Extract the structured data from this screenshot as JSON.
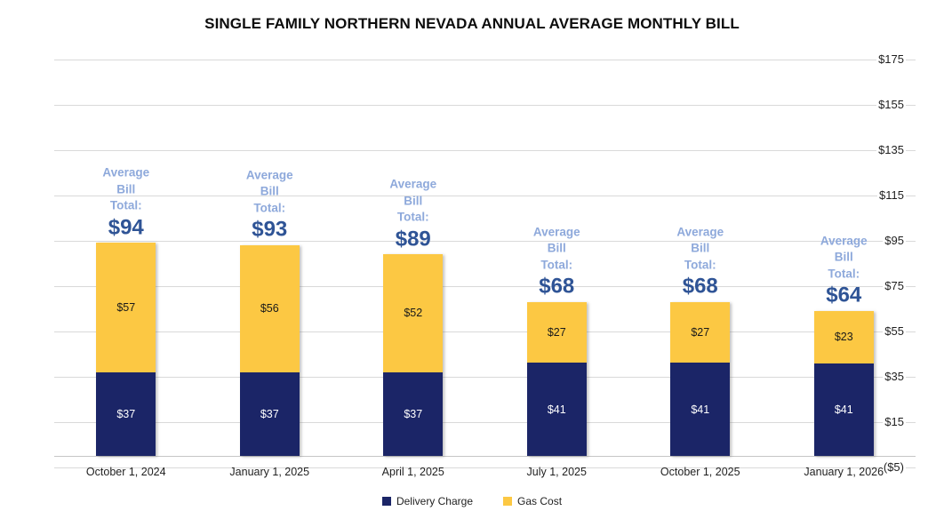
{
  "title": "SINGLE FAMILY NORTHERN NEVADA ANNUAL AVERAGE MONTHLY BILL",
  "colors": {
    "delivery": "#1B2567",
    "gas": "#FCC843",
    "annotation_light": "#8EA9DB",
    "annotation_dark": "#2F5496",
    "gridline": "#D9D9D9",
    "delivery_value_text": "#FFFFFF",
    "gas_value_text": "#1A1A1A",
    "background": "#FFFFFF"
  },
  "annotation": {
    "lines": [
      "Average",
      "Bill",
      "Total:"
    ]
  },
  "y_axis": {
    "max": 175,
    "min": -5,
    "ticks": [
      {
        "value": 175,
        "label": "$175"
      },
      {
        "value": 155,
        "label": "$155"
      },
      {
        "value": 135,
        "label": "$135"
      },
      {
        "value": 115,
        "label": "$115"
      },
      {
        "value": 95,
        "label": "$95"
      },
      {
        "value": 75,
        "label": "$75"
      },
      {
        "value": 55,
        "label": "$55"
      },
      {
        "value": 35,
        "label": "$35"
      },
      {
        "value": 15,
        "label": "$15"
      },
      {
        "value": -5,
        "label": "($5)"
      }
    ]
  },
  "legend": {
    "items": [
      {
        "name": "Delivery Charge",
        "color_key": "delivery"
      },
      {
        "name": "Gas Cost",
        "color_key": "gas"
      }
    ]
  },
  "chart_data": {
    "type": "bar",
    "stacked": true,
    "title": "SINGLE FAMILY NORTHERN NEVADA ANNUAL AVERAGE MONTHLY BILL",
    "categories": [
      "October 1, 2024",
      "January 1, 2025",
      "April 1, 2025",
      "July 1, 2025",
      "October 1, 2025",
      "January 1, 2026"
    ],
    "series": [
      {
        "name": "Delivery Charge",
        "values": [
          37,
          37,
          37,
          41,
          41,
          41
        ],
        "labels": [
          "$37",
          "$37",
          "$37",
          "$41",
          "$41",
          "$41"
        ]
      },
      {
        "name": "Gas Cost",
        "values": [
          57,
          56,
          52,
          27,
          27,
          23
        ],
        "labels": [
          "$57",
          "$56",
          "$52",
          "$27",
          "$27",
          "$23"
        ]
      }
    ],
    "totals": [
      94,
      93,
      89,
      68,
      68,
      64
    ],
    "total_labels": [
      "$94",
      "$93",
      "$89",
      "$68",
      "$68",
      "$64"
    ],
    "ylim": [
      -5,
      175
    ],
    "gridlines": true,
    "legend_position": "bottom",
    "xlabel": "",
    "ylabel": ""
  }
}
